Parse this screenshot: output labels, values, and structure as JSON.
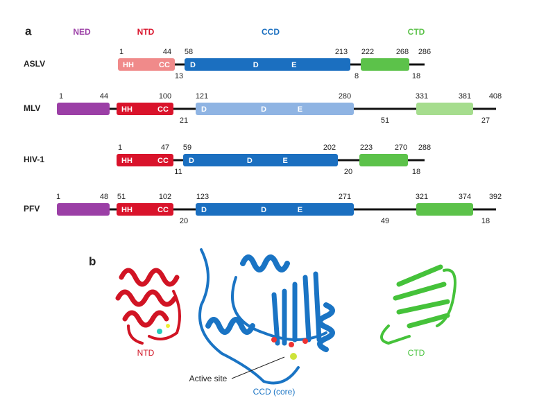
{
  "panel_a": {
    "label": "a",
    "domain_headers": [
      "NED",
      "NTD",
      "CCD",
      "CTD"
    ],
    "rows": [
      {
        "name": "ASLV",
        "top_labels": [
          1,
          44,
          58,
          213,
          222,
          268,
          286
        ],
        "bottom_labels": [
          13,
          8,
          18
        ],
        "domains": [
          {
            "labels": [
              "HH",
              "CC"
            ]
          },
          {
            "labels": [
              "D",
              "D",
              "E"
            ]
          },
          {
            "labels": []
          }
        ]
      },
      {
        "name": "MLV",
        "top_labels": [
          1,
          44,
          100,
          121,
          280,
          331,
          381,
          408
        ],
        "bottom_labels": [
          21,
          51,
          27
        ],
        "domains": [
          {
            "labels": []
          },
          {
            "labels": [
              "HH",
              "CC"
            ]
          },
          {
            "labels": [
              "D",
              "D",
              "E"
            ]
          },
          {
            "labels": []
          }
        ]
      },
      {
        "name": "HIV-1",
        "top_labels": [
          1,
          47,
          59,
          202,
          223,
          270,
          288
        ],
        "bottom_labels": [
          11,
          20,
          18
        ],
        "domains": [
          {
            "labels": [
              "HH",
              "CC"
            ]
          },
          {
            "labels": [
              "D",
              "D",
              "E"
            ]
          },
          {
            "labels": []
          }
        ]
      },
      {
        "name": "PFV",
        "top_labels": [
          1,
          48,
          51,
          102,
          123,
          271,
          321,
          374,
          392
        ],
        "bottom_labels": [
          20,
          49,
          18
        ],
        "domains": [
          {
            "labels": []
          },
          {
            "labels": [
              "HH",
              "CC"
            ]
          },
          {
            "labels": [
              "D",
              "D",
              "E"
            ]
          },
          {
            "labels": []
          }
        ]
      }
    ]
  },
  "panel_b": {
    "label": "b",
    "structures": [
      "NTD",
      "CCD (core)",
      "CTD"
    ],
    "annotation": "Active site"
  }
}
